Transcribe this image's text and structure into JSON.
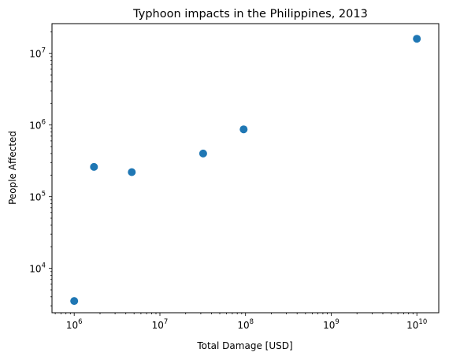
{
  "chart_data": {
    "type": "scatter",
    "title": "Typhoon impacts in the Philippines, 2013",
    "xlabel": "Total Damage [USD]",
    "ylabel": "People Affected",
    "xscale": "log",
    "yscale": "log",
    "xlim": [
      550000,
      18000000000
    ],
    "ylim": [
      2400,
      26000000
    ],
    "grid": false,
    "marker_color": "#1f77b4",
    "x_ticks": [
      {
        "base": "10",
        "exp": "6",
        "value": 1000000
      },
      {
        "base": "10",
        "exp": "7",
        "value": 10000000
      },
      {
        "base": "10",
        "exp": "8",
        "value": 100000000
      },
      {
        "base": "10",
        "exp": "9",
        "value": 1000000000
      },
      {
        "base": "10",
        "exp": "10",
        "value": 10000000000
      }
    ],
    "y_ticks": [
      {
        "base": "10",
        "exp": "4",
        "value": 10000
      },
      {
        "base": "10",
        "exp": "5",
        "value": 100000
      },
      {
        "base": "10",
        "exp": "6",
        "value": 1000000
      },
      {
        "base": "10",
        "exp": "7",
        "value": 10000000
      }
    ],
    "points": [
      {
        "x": 1000000,
        "y": 3500
      },
      {
        "x": 1700000,
        "y": 260000
      },
      {
        "x": 4700000,
        "y": 220000
      },
      {
        "x": 32000000,
        "y": 400000
      },
      {
        "x": 95000000,
        "y": 870000
      },
      {
        "x": 10000000000,
        "y": 16000000
      }
    ]
  }
}
